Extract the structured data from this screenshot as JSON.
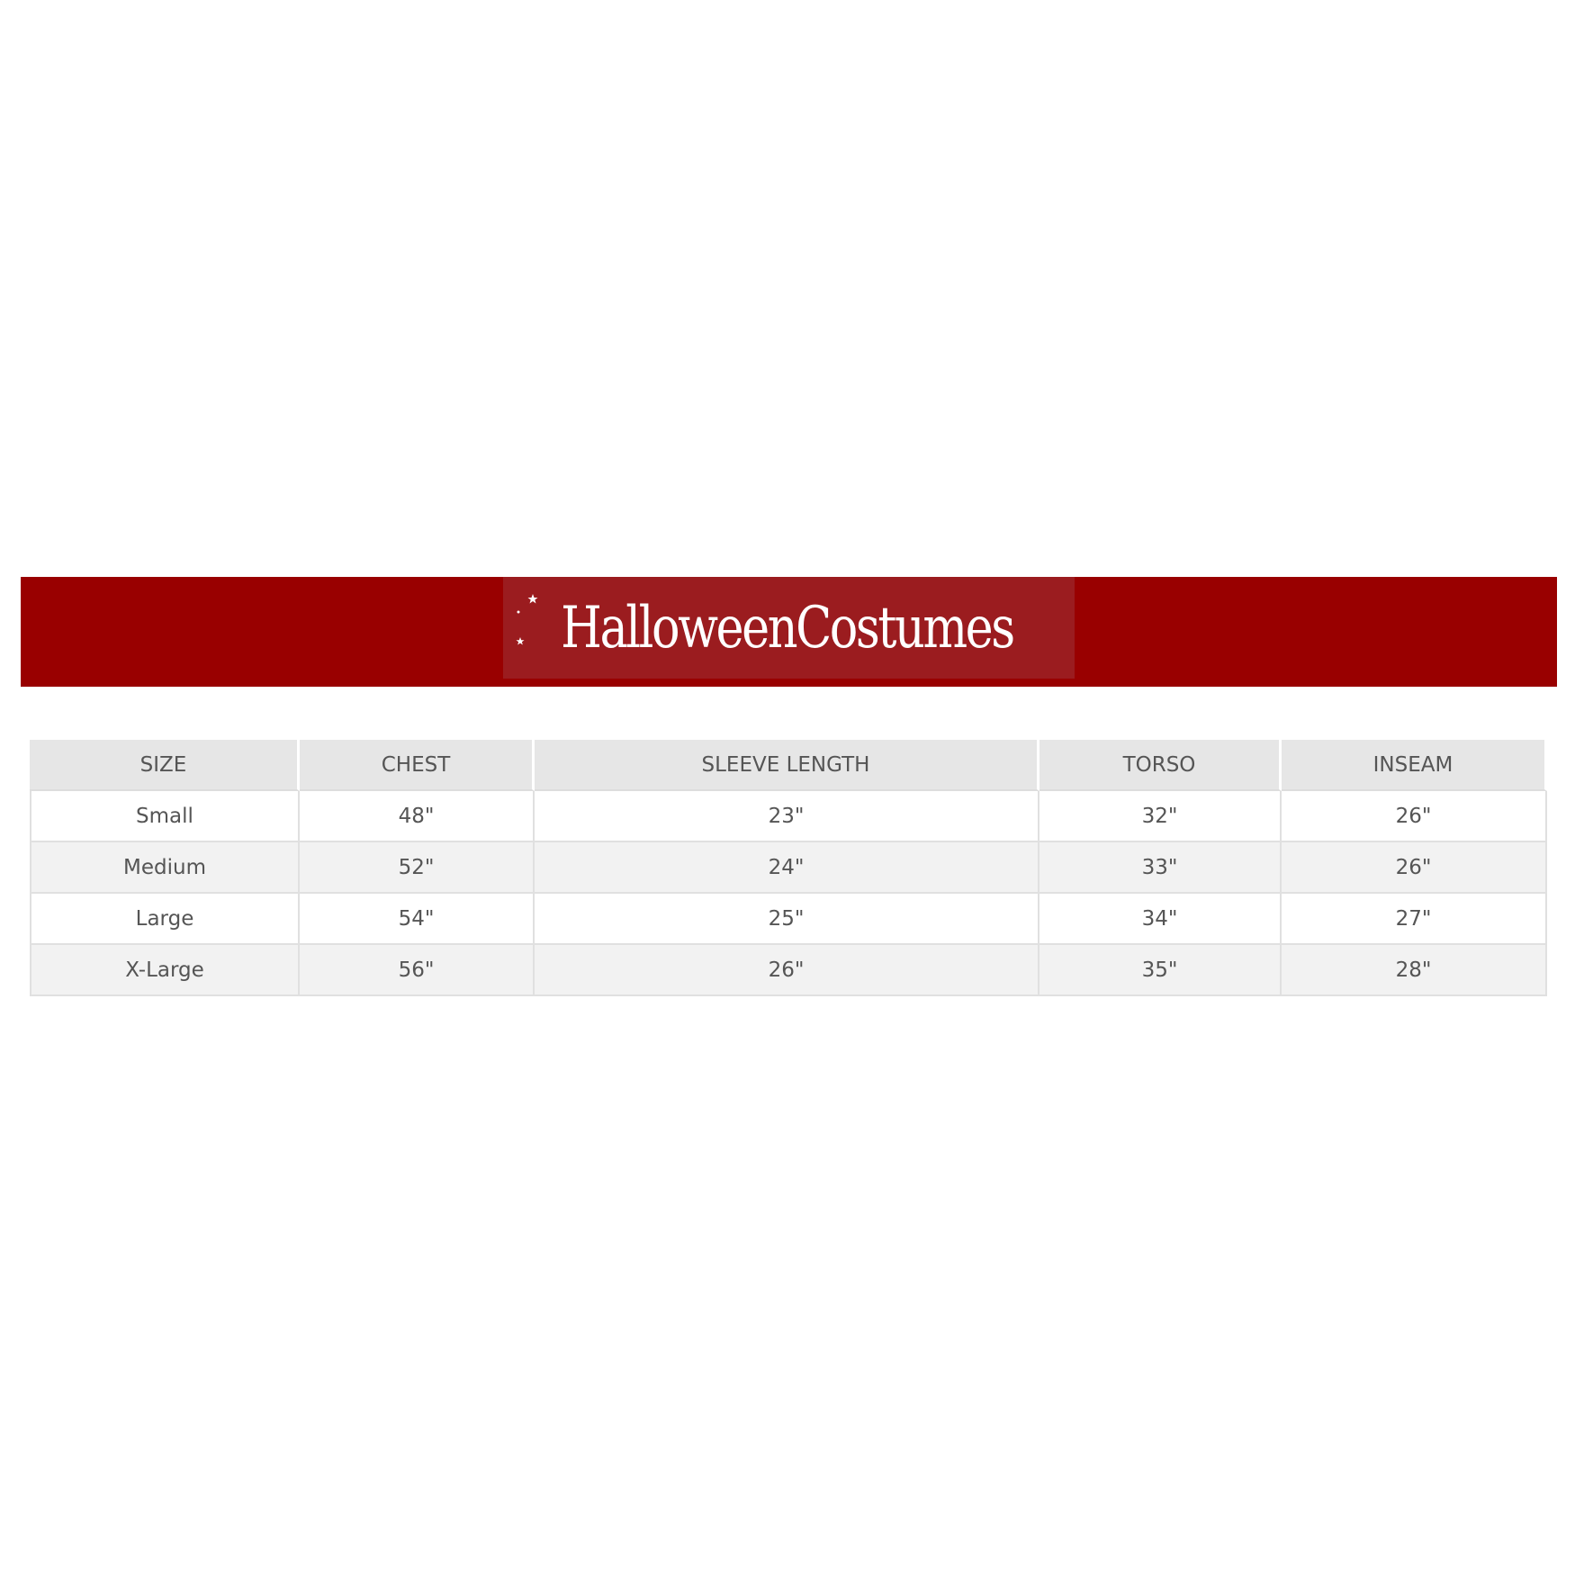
{
  "brand": {
    "logo_text": "HalloweenCostumes",
    "banner_color": "#990000",
    "logo_bg_color": "#9b1c1f"
  },
  "size_chart": {
    "headers": [
      "SIZE",
      "CHEST",
      "SLEEVE LENGTH",
      "TORSO",
      "INSEAM"
    ],
    "rows": [
      [
        "Small",
        "48\"",
        "23\"",
        "32\"",
        "26\""
      ],
      [
        "Medium",
        "52\"",
        "24\"",
        "33\"",
        "26\""
      ],
      [
        "Large",
        "54\"",
        "25\"",
        "34\"",
        "27\""
      ],
      [
        "X-Large",
        "56\"",
        "26\"",
        "35\"",
        "28\""
      ]
    ]
  }
}
